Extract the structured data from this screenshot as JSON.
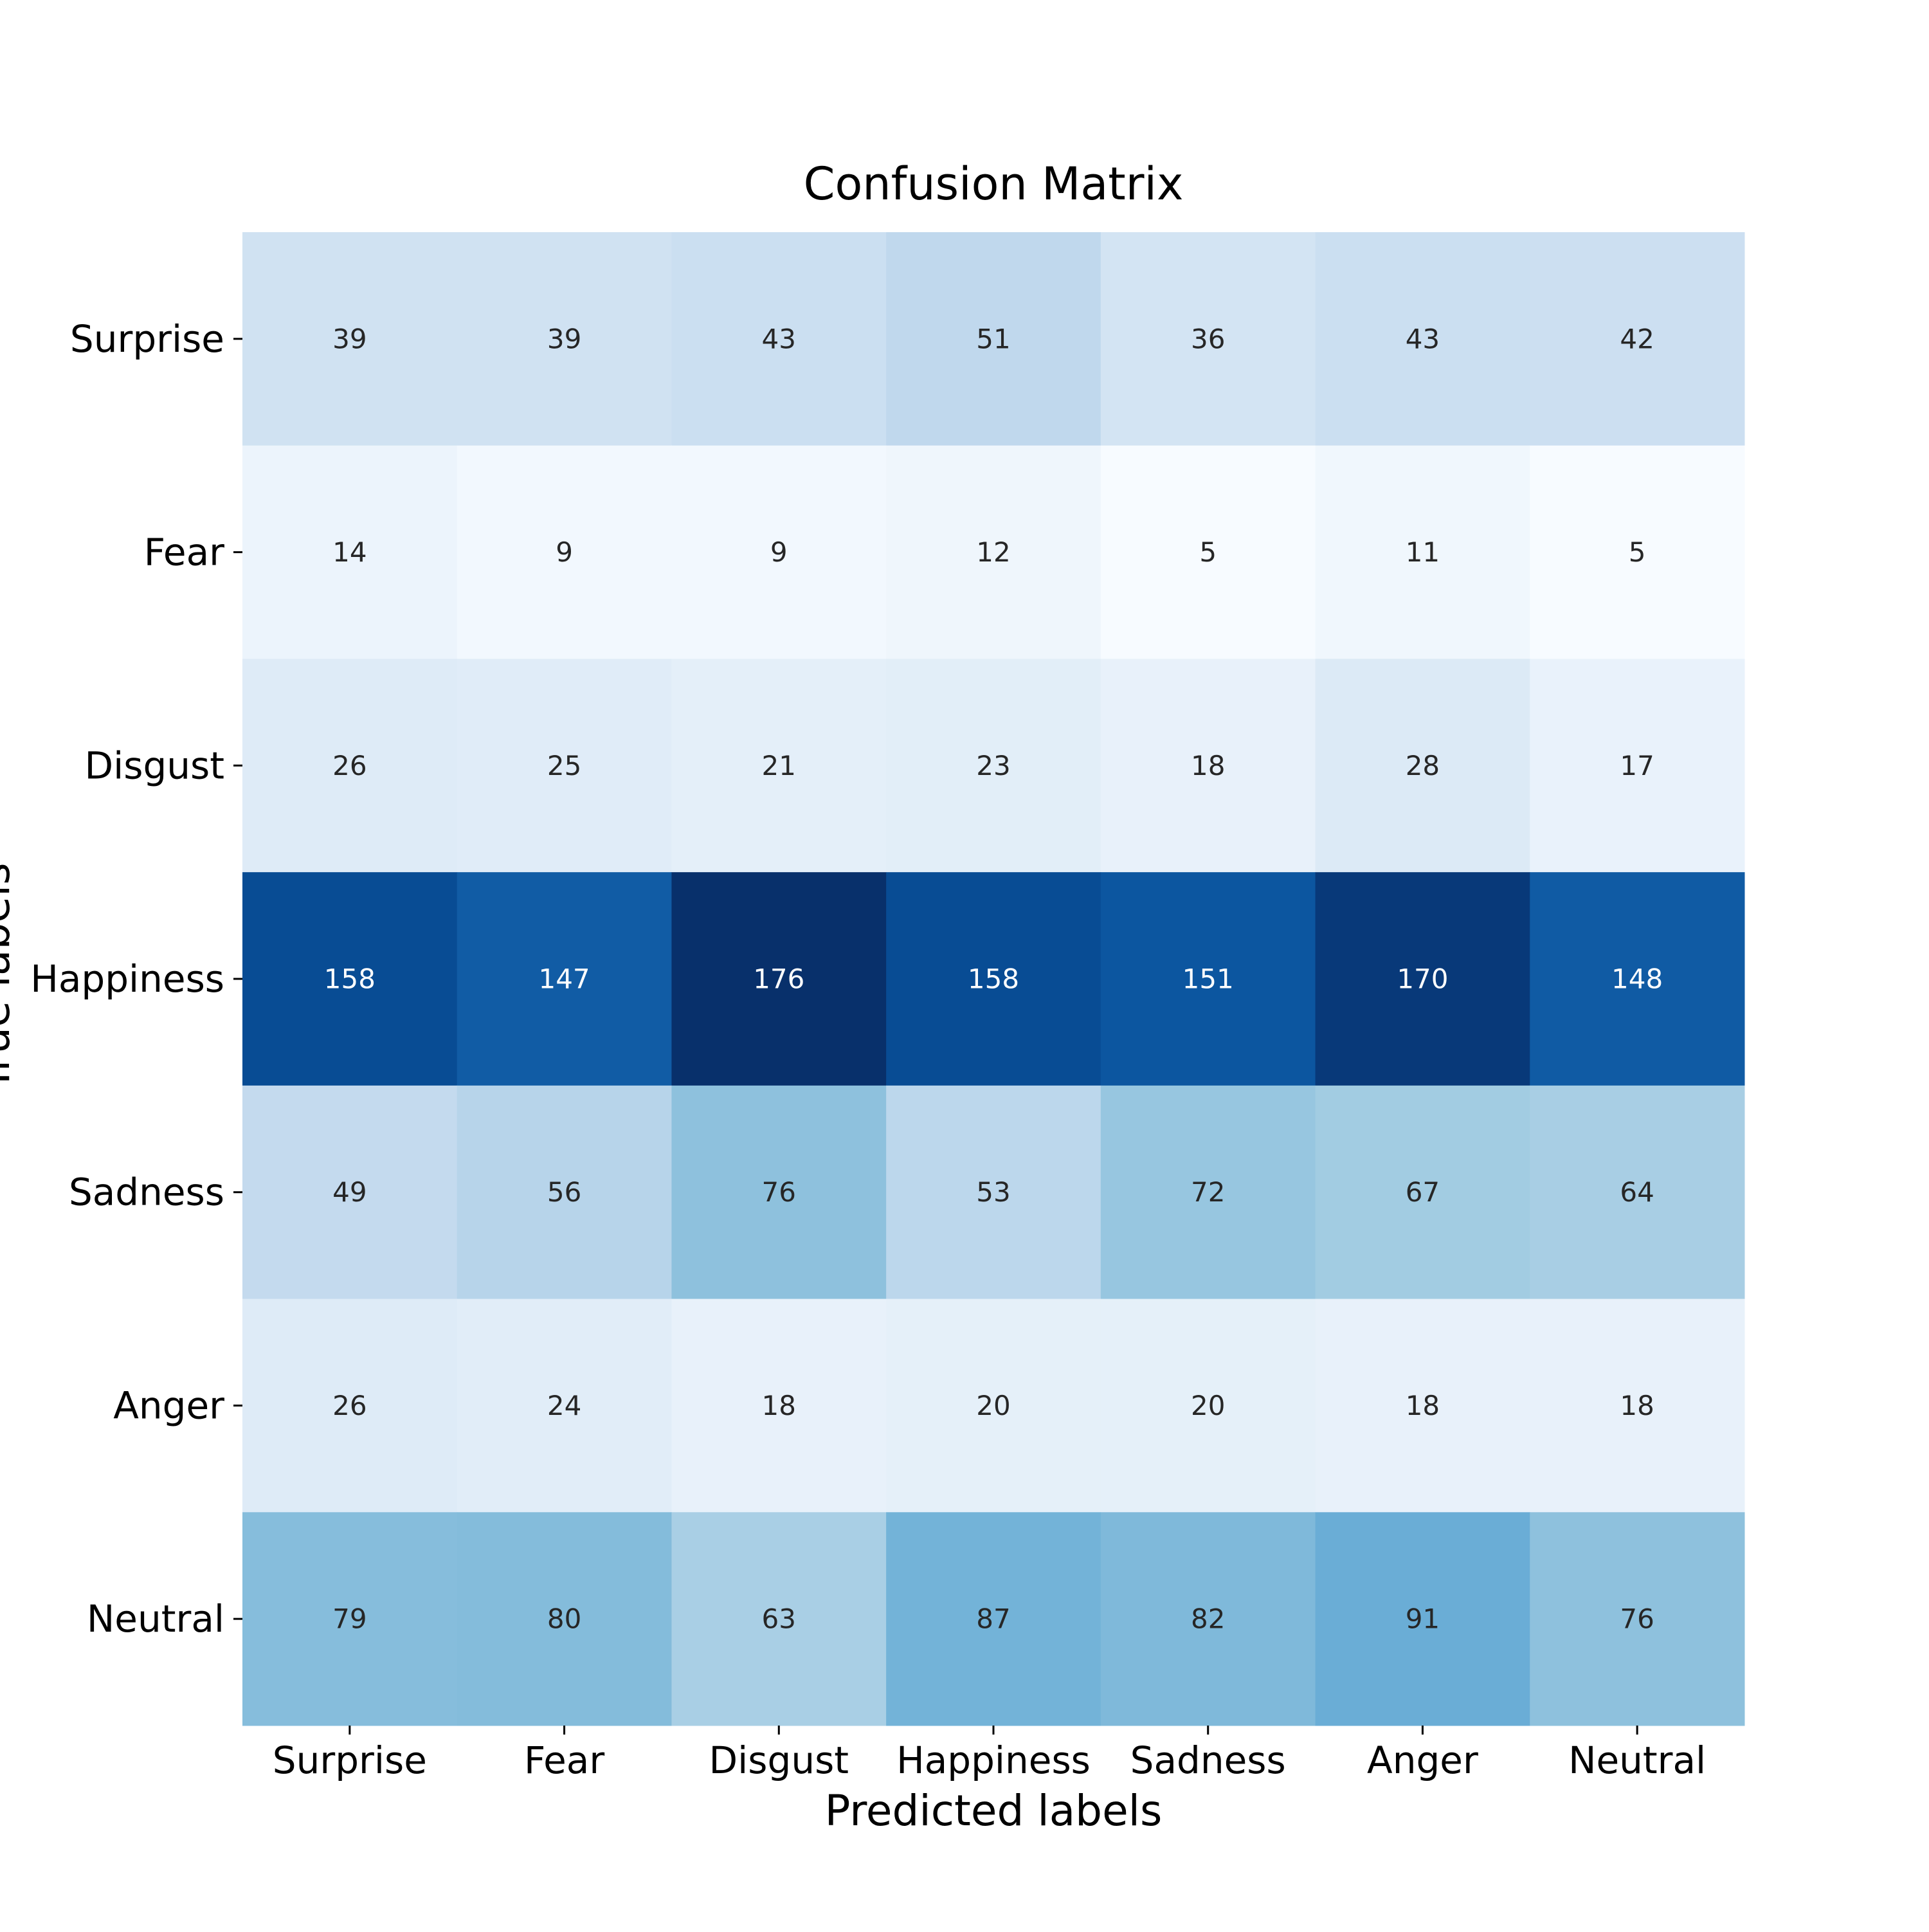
{
  "chart_data": {
    "type": "heatmap",
    "title": "Confusion Matrix",
    "xlabel": "Predicted labels",
    "ylabel": "True labels",
    "x_categories": [
      "Surprise",
      "Fear",
      "Disgust",
      "Happiness",
      "Sadness",
      "Anger",
      "Neutral"
    ],
    "y_categories": [
      "Surprise",
      "Fear",
      "Disgust",
      "Happiness",
      "Sadness",
      "Anger",
      "Neutral"
    ],
    "values": [
      [
        39,
        39,
        43,
        51,
        36,
        43,
        42
      ],
      [
        14,
        9,
        9,
        12,
        5,
        11,
        5
      ],
      [
        26,
        25,
        21,
        23,
        18,
        28,
        17
      ],
      [
        158,
        147,
        176,
        158,
        151,
        170,
        148
      ],
      [
        49,
        56,
        76,
        53,
        72,
        67,
        64
      ],
      [
        26,
        24,
        18,
        20,
        20,
        18,
        18
      ],
      [
        79,
        80,
        63,
        87,
        82,
        91,
        76
      ]
    ],
    "colormap": "Blues",
    "vmin": 5,
    "vmax": 176,
    "colorbar": false,
    "grid": false
  }
}
